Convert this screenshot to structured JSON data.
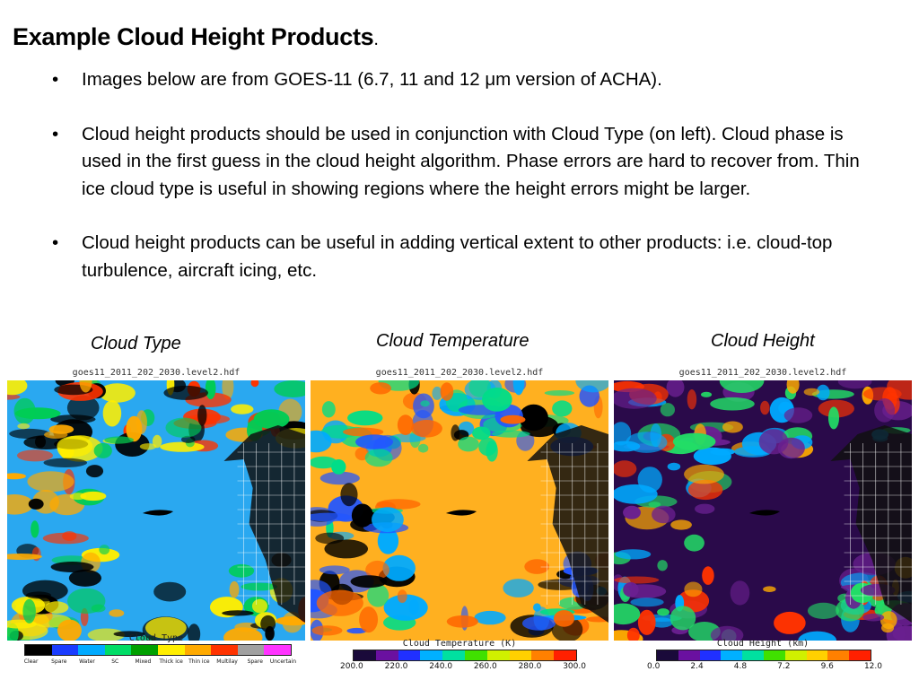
{
  "slide": {
    "title": "Example Cloud Height Products",
    "title_dot": ".",
    "bullets": [
      "Images below are from GOES-11 (6.7, 11 and 12 μm version of ACHA).",
      "Cloud height products should be used in conjunction with Cloud Type (on left).  Cloud phase is used in the first guess in the cloud height algorithm.  Phase errors are hard to recover from.  Thin ice cloud type is useful in showing regions where the height errors might be larger.",
      "Cloud height products can be useful in adding vertical extent to other products: i.e. cloud-top turbulence, aircraft icing,  etc."
    ]
  },
  "panels": {
    "cloud_type": {
      "caption": "Cloud Type",
      "file": "goes11_2011_202_2030.level2.hdf",
      "legend_title": "Cloud Type",
      "categories": [
        "Clear",
        "Spare",
        "Water",
        "SC",
        "Mixed",
        "Thick ice",
        "Thin ice",
        "Multilay",
        "Spare",
        "Uncertain"
      ],
      "colors": [
        "#000000",
        "#1a3cff",
        "#00aaff",
        "#00dd66",
        "#00a000",
        "#ffee00",
        "#ffaa00",
        "#ff3300",
        "#a0a0a0",
        "#ff33ff"
      ],
      "palette": {
        "background": "#2aa8f0",
        "clouds": [
          "#ffee00",
          "#ff3300",
          "#ffaa00",
          "#00cc55",
          "#000000"
        ]
      }
    },
    "cloud_temperature": {
      "caption": "Cloud Temperature",
      "file": "goes11_2011_202_2030.level2.hdf",
      "legend_title": "Cloud Temperature (K)",
      "ticks": [
        "200.0",
        "220.0",
        "240.0",
        "260.0",
        "280.0",
        "300.0"
      ],
      "colors": [
        "#1a0a3a",
        "#6a10a0",
        "#2030ff",
        "#00b0ff",
        "#00e0a0",
        "#40e000",
        "#d0f000",
        "#ffd000",
        "#ff8000",
        "#ff2000"
      ],
      "palette": {
        "background": "#ffb020",
        "clouds": [
          "#00aaff",
          "#2255ff",
          "#00dd88",
          "#000000",
          "#ff6600"
        ]
      }
    },
    "cloud_height": {
      "caption": "Cloud Height",
      "file": "goes11_2011_202_2030.level2.hdf",
      "legend_title": "Cloud Height (km)",
      "ticks": [
        "0.0",
        "2.4",
        "4.8",
        "7.2",
        "9.6",
        "12.0"
      ],
      "colors": [
        "#1a0a3a",
        "#6a10a0",
        "#2030ff",
        "#00b0ff",
        "#00e0a0",
        "#40e000",
        "#d0f000",
        "#ffd000",
        "#ff8000",
        "#ff2000"
      ],
      "palette": {
        "background": "#2a0a4a",
        "clouds": [
          "#ff3300",
          "#00aaff",
          "#22dd66",
          "#ffaa00",
          "#6a2090"
        ]
      }
    }
  }
}
